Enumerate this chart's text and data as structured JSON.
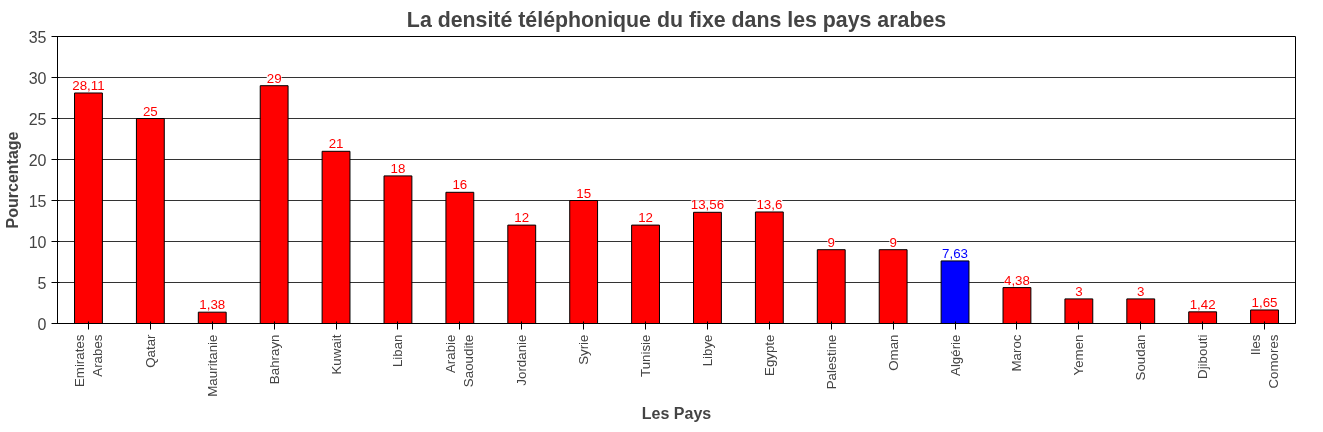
{
  "chart_data": {
    "type": "bar",
    "title": "La densité téléphonique du fixe dans les pays arabes",
    "xlabel": "Les Pays",
    "ylabel": "Pourcentage",
    "categories": [
      "Emirates Arabes",
      "Qatar",
      "Mauritanie",
      "Bahrayn",
      "Kuwait",
      "Liban",
      "Arabie Saoudite",
      "Jordanie",
      "Syrie",
      "Tunisie",
      "Libye",
      "Egypte",
      "Palestine",
      "Oman",
      "Algérie",
      "Maroc",
      "Yemen",
      "Soudan",
      "Djibouti",
      "Iles Comores"
    ],
    "values": [
      28.11,
      25,
      1.38,
      29,
      21,
      18,
      16,
      12,
      15,
      12,
      13.56,
      13.6,
      9,
      9,
      7.63,
      4.38,
      3,
      3,
      1.42,
      1.65
    ],
    "value_labels": [
      "28,11",
      "25",
      "1,38",
      "29",
      "21",
      "18",
      "16",
      "12",
      "15",
      "12",
      "13,56",
      "13,6",
      "9",
      "9",
      "7,63",
      "4,38",
      "3",
      "3",
      "1,42",
      "1,65"
    ],
    "colors": [
      "#ff0000",
      "#ff0000",
      "#ff0000",
      "#ff0000",
      "#ff0000",
      "#ff0000",
      "#ff0000",
      "#ff0000",
      "#ff0000",
      "#ff0000",
      "#ff0000",
      "#ff0000",
      "#ff0000",
      "#ff0000",
      "#0000ff",
      "#ff0000",
      "#ff0000",
      "#ff0000",
      "#ff0000",
      "#ff0000"
    ],
    "ylim": [
      0,
      35
    ],
    "yticks": [
      0,
      5,
      10,
      15,
      20,
      25,
      30,
      35
    ],
    "grid": "y"
  }
}
